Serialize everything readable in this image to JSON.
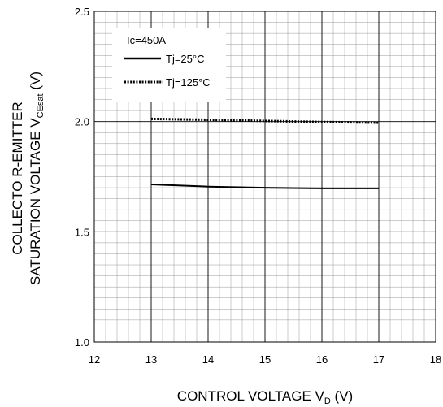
{
  "chart_data": {
    "type": "line",
    "xlabel_main": "CONTROL VOLTAGE V",
    "xlabel_sub": "D",
    "xlabel_unit": " (V)",
    "ylabel_line1": "COLLECTO R-EMITTER",
    "ylabel_line2_main": "SATURATION VOLTAGE V",
    "ylabel_line2_sub": "CEsat",
    "ylabel_line2_unit": " (V)",
    "xlim": [
      12,
      18
    ],
    "ylim": [
      1.0,
      2.5
    ],
    "x_ticks": [
      "12",
      "13",
      "14",
      "15",
      "16",
      "17",
      "18"
    ],
    "y_ticks": [
      "1.0",
      "1.5",
      "2.0",
      "2.5"
    ],
    "grid": true,
    "legend_title": "Ic=450A",
    "legend_position": "top-left",
    "series": [
      {
        "name": "Tj=25°C",
        "style": "solid",
        "x": [
          13,
          14,
          15,
          16,
          17
        ],
        "y": [
          1.715,
          1.705,
          1.7,
          1.697,
          1.697
        ]
      },
      {
        "name": "Tj=125°C",
        "style": "dotted",
        "x": [
          13,
          14,
          15,
          16,
          17
        ],
        "y": [
          2.012,
          2.008,
          2.003,
          1.998,
          1.995
        ]
      }
    ],
    "colors": {
      "line": "#000000",
      "grid": "#000000",
      "minor_grid": "#999999"
    }
  }
}
